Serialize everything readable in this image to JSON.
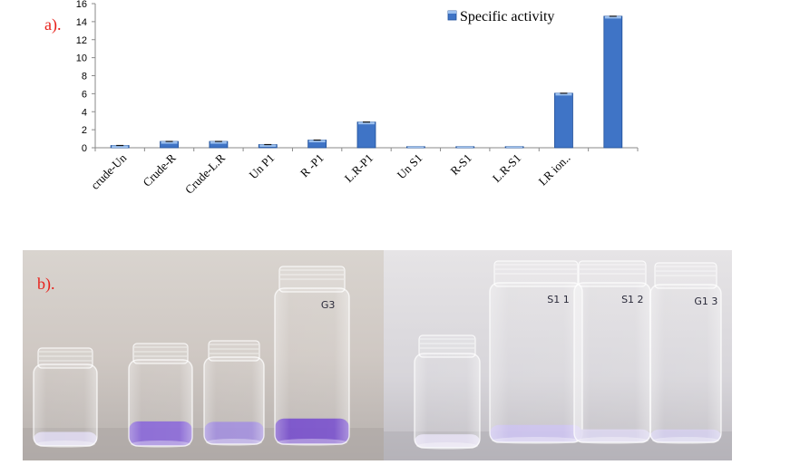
{
  "panel_a_label": "a).",
  "panel_b_label": "b).",
  "colors": {
    "bar_fill": "#3f74c6",
    "bar_top": "#9cc0ee",
    "bar_side": "#1f4f98",
    "axis": "#8a8a8a",
    "panel_label": "#e8201a"
  },
  "chart_data": {
    "type": "bar",
    "categories": [
      "crude-Un",
      "Crude-R",
      "Crude-L.R",
      "Un P1",
      "R -P1",
      "L.R-P1",
      "Un S1",
      "R-S1",
      "L.R-S1",
      "LR ion..",
      ""
    ],
    "series": [
      {
        "name": "Specific activity",
        "values": [
          0.25,
          0.7,
          0.7,
          0.35,
          0.85,
          2.85,
          0.05,
          0.05,
          0.05,
          6.05,
          14.6
        ]
      }
    ],
    "y_ticks": [
      "0",
      "2",
      "4",
      "6",
      "8",
      "10",
      "12",
      "14",
      "16"
    ],
    "ylim": [
      0,
      16
    ],
    "grid": false,
    "legend_position": "top-right",
    "xlabel": "",
    "ylabel": ""
  },
  "photo": {
    "description_icons": [
      "vial-icon"
    ],
    "left_group_vials": [
      {
        "label": "",
        "liquid_color": "#dcd6ee",
        "fill": 0.12
      },
      {
        "label": "",
        "liquid_color": "#7f5bd6",
        "fill": 0.2
      },
      {
        "label": "",
        "liquid_color": "#9b86dc",
        "fill": 0.18
      },
      {
        "label": "G3",
        "liquid_color": "#6c3fc9",
        "fill": 0.12
      }
    ],
    "right_group_vials": [
      {
        "label": "",
        "liquid_color": "#e4dff2",
        "fill": 0.1
      },
      {
        "label": "S1 1",
        "liquid_color": "#c9bfee",
        "fill": 0.08
      },
      {
        "label": "S1 2",
        "liquid_color": "#d9d4ee",
        "fill": 0.06
      },
      {
        "label": "G1 3",
        "liquid_color": "#d2ccec",
        "fill": 0.06
      }
    ]
  }
}
